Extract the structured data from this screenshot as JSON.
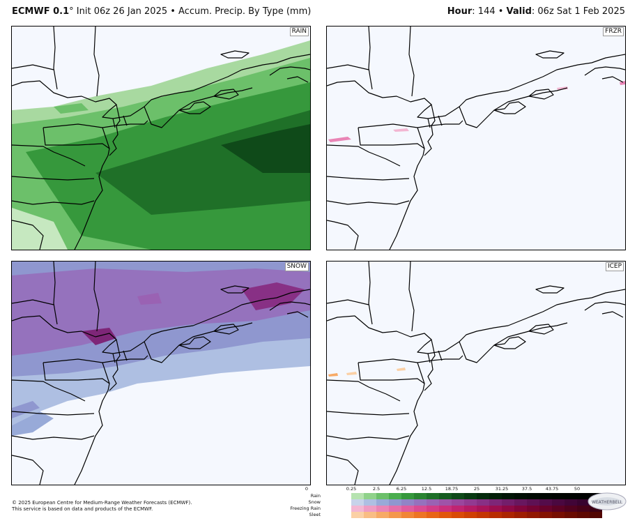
{
  "header": {
    "model": "ECMWF 0.1",
    "init": "° Init 06z 26 Jan 2025 • Accum. Precip. By Type (mm)",
    "hour_label": "Hour",
    "hour_value": ": 144 • ",
    "valid_label": "Valid",
    "valid_value": ": 06z Sat 1 Feb 2025"
  },
  "panels": {
    "rain": "RAIN",
    "frzr": "FRZR",
    "snow": "SNOW",
    "icep": "ICEP"
  },
  "legend": {
    "ticks": [
      "0",
      "0.25",
      "2.5",
      "6.25",
      "12.5",
      "18.75",
      "25",
      "31.25",
      "37.5",
      "43.75",
      "50"
    ],
    "rows": [
      {
        "name": "Rain",
        "colors": [
          "#b6e3b0",
          "#8fd28a",
          "#6cc06a",
          "#4aad4e",
          "#36983c",
          "#2a8431",
          "#1f7028",
          "#165c20",
          "#0f4a19",
          "#093a12",
          "#052b0c",
          "#031f08",
          "#021506",
          "#010e04",
          "#010a03",
          "#000702",
          "#000501",
          "#000401",
          "#000301",
          "#000201"
        ]
      },
      {
        "name": "Snow",
        "colors": [
          "#c7d3ea",
          "#aebfe2",
          "#98aad8",
          "#8f97cf",
          "#9184c6",
          "#9572bd",
          "#9a62b3",
          "#9f53a8",
          "#9a469d",
          "#923a91",
          "#883085",
          "#7e2678",
          "#731e6b",
          "#68175f",
          "#5e1154",
          "#540c4a",
          "#4a0840",
          "#410537",
          "#38032f",
          "#300228"
        ]
      },
      {
        "name": "Freezing Rain",
        "colors": [
          "#f3b6d2",
          "#ee9cc3",
          "#e985b6",
          "#e46fa9",
          "#df5c9e",
          "#d94b93",
          "#d23c88",
          "#ca2f7d",
          "#c02472",
          "#b51b66",
          "#a9145b",
          "#9c0e50",
          "#8e0946",
          "#81053c",
          "#740333",
          "#67022b",
          "#5b0124",
          "#50011e",
          "#460118",
          "#3c0013"
        ]
      },
      {
        "name": "Sleet",
        "colors": [
          "#fbd0a5",
          "#f9bd84",
          "#f7aa66",
          "#f4974c",
          "#f18536",
          "#ed7424",
          "#e86416",
          "#e1560c",
          "#d94a06",
          "#cf3f03",
          "#c43502",
          "#b82c01",
          "#ab2401",
          "#9e1d01",
          "#911701",
          "#841201",
          "#770e01",
          "#6a0b01",
          "#5e0801",
          "#520601"
        ]
      }
    ]
  },
  "copyright": [
    "© 2025 European Centre for Medium-Range Weather Forecasts (ECMWF).",
    "This service is based on data and products of the ECMWF."
  ],
  "logo_text": "WEATHERBELL"
}
